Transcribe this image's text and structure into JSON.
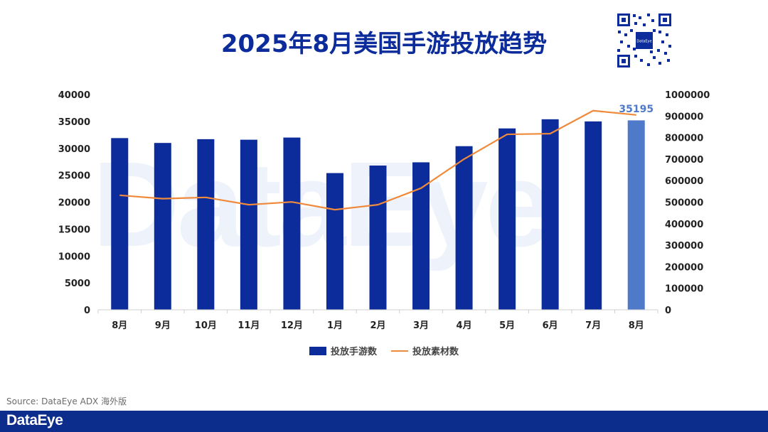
{
  "title": "2025年8月美国手游投放趋势",
  "source": "Source: DataEye ADX 海外版",
  "footer_logo": "DataEye",
  "watermark": "DataEye",
  "qr_center_label": "DataEye",
  "colors": {
    "bar": "#0b2c9a",
    "bar_highlight": "#4f79c9",
    "line": "#ef8a3c",
    "footer": "#0d2d8c",
    "label_highlight": "#4f79c9"
  },
  "chart_data": {
    "type": "bar",
    "categories": [
      "8月",
      "9月",
      "10月",
      "11月",
      "12月",
      "1月",
      "2月",
      "3月",
      "4月",
      "5月",
      "6月",
      "7月",
      "8月"
    ],
    "series": [
      {
        "name": "投放手游数",
        "type": "bar",
        "axis": "left",
        "values": [
          31900,
          31000,
          31700,
          31600,
          32000,
          25400,
          26800,
          27400,
          30400,
          33700,
          35400,
          35000,
          35195
        ]
      },
      {
        "name": "投放素材数",
        "type": "line",
        "axis": "right",
        "values": [
          532000,
          516000,
          522000,
          488000,
          501000,
          465000,
          488000,
          565000,
          700000,
          815000,
          818000,
          925000,
          905000
        ]
      }
    ],
    "y_left": {
      "min": 0,
      "max": 40000,
      "ticks": [
        "0",
        "5000",
        "10000",
        "15000",
        "20000",
        "25000",
        "30000",
        "35000",
        "40000"
      ]
    },
    "y_right": {
      "min": 0,
      "max": 1000000,
      "ticks": [
        "0",
        "100000",
        "200000",
        "300000",
        "400000",
        "500000",
        "600000",
        "700000",
        "800000",
        "900000",
        "1000000"
      ]
    },
    "highlight_index": 12,
    "data_label": "35195",
    "legend": [
      "投放手游数",
      "投放素材数"
    ],
    "legend_position": "bottom"
  }
}
